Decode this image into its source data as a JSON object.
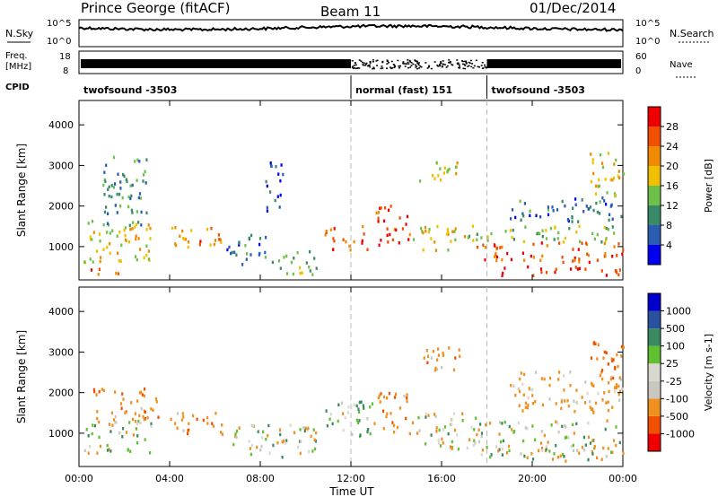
{
  "header": {
    "station": "Prince George (fitACF)",
    "beam": "Beam 11",
    "date": "01/Dec/2014"
  },
  "top_panels": {
    "nsky_label": "N.Sky",
    "nsky_ticks": [
      "10^5",
      "10^0"
    ],
    "nsearch_label": "N.Search",
    "nsearch_ticks": [
      "10^5",
      "10^0"
    ],
    "freq_label": "Freq.",
    "freq_unit": "[MHz]",
    "freq_ticks": [
      "18",
      "8"
    ],
    "nave_label": "Nave",
    "nave_ticks": [
      "60",
      "0"
    ],
    "cpid_label": "CPID"
  },
  "cpid_segments": [
    {
      "start_h": 0,
      "end_h": 12,
      "label": "twofsound -3503"
    },
    {
      "start_h": 12,
      "end_h": 18,
      "label": "normal (fast) 151"
    },
    {
      "start_h": 18,
      "end_h": 24,
      "label": "twofsound -3503"
    }
  ],
  "colors": {
    "power": [
      "#0000ee",
      "#2a5cb4",
      "#3a8a6a",
      "#6fc04a",
      "#f0c000",
      "#f08a00",
      "#f05000",
      "#ee0000"
    ],
    "velocity": [
      "#ee0000",
      "#f05000",
      "#f09020",
      "#c8c8c0",
      "#d8d8d0",
      "#60c030",
      "#3a8a60",
      "#2a50a0",
      "#0000cc"
    ]
  },
  "chart_data": [
    {
      "type": "heatmap",
      "title": "Power",
      "xlabel": "Time UT",
      "ylabel": "Slant Range [km]",
      "x_ticks": [
        "00:00",
        "04:00",
        "08:00",
        "12:00",
        "16:00",
        "20:00",
        "00:00"
      ],
      "xlim_hours": [
        0,
        24
      ],
      "y_ticks": [
        1000,
        2000,
        3000,
        4000
      ],
      "ylim": [
        180,
        4600
      ],
      "colorbar": {
        "label": "Power [dB]",
        "ticks": [
          "4",
          "8",
          "12",
          "16",
          "20",
          "24",
          "28"
        ],
        "range": [
          0,
          32
        ]
      },
      "echo_regions": [
        {
          "t0": 0.2,
          "t1": 3.3,
          "r0": 600,
          "r1": 1700,
          "v": 18
        },
        {
          "t0": 0.3,
          "t1": 2.2,
          "r0": 300,
          "r1": 450,
          "v": 28
        },
        {
          "t0": 1.0,
          "t1": 3.0,
          "r0": 1500,
          "r1": 3200,
          "v": 10
        },
        {
          "t0": 4.0,
          "t1": 5.0,
          "r0": 800,
          "r1": 1500,
          "v": 20
        },
        {
          "t0": 5.2,
          "t1": 6.3,
          "r0": 900,
          "r1": 1500,
          "v": 24
        },
        {
          "t0": 6.5,
          "t1": 8.3,
          "r0": 500,
          "r1": 1300,
          "v": 8
        },
        {
          "t0": 8.2,
          "t1": 9.0,
          "r0": 1800,
          "r1": 3100,
          "v": 6
        },
        {
          "t0": 8.5,
          "t1": 10.5,
          "r0": 300,
          "r1": 900,
          "v": 12
        },
        {
          "t0": 10.8,
          "t1": 12.8,
          "r0": 900,
          "r1": 1500,
          "v": 26
        },
        {
          "t0": 13.0,
          "t1": 14.5,
          "r0": 1000,
          "r1": 2000,
          "v": 28
        },
        {
          "t0": 14.5,
          "t1": 17.0,
          "r0": 900,
          "r1": 1500,
          "v": 18
        },
        {
          "t0": 15.0,
          "t1": 17.0,
          "r0": 2600,
          "r1": 3100,
          "v": 16
        },
        {
          "t0": 17.5,
          "t1": 24.0,
          "r0": 600,
          "r1": 1100,
          "v": 26
        },
        {
          "t0": 18.0,
          "t1": 24.0,
          "r0": 280,
          "r1": 500,
          "v": 30
        },
        {
          "t0": 17.0,
          "t1": 24.0,
          "r0": 1100,
          "r1": 1500,
          "v": 14
        },
        {
          "t0": 19.0,
          "t1": 24.0,
          "r0": 1600,
          "r1": 2200,
          "v": 8
        },
        {
          "t0": 22.5,
          "t1": 24.0,
          "r0": 2200,
          "r1": 3300,
          "v": 18
        }
      ]
    },
    {
      "type": "heatmap",
      "title": "Velocity",
      "xlabel": "Time UT",
      "ylabel": "Slant Range [km]",
      "x_ticks": [
        "00:00",
        "04:00",
        "08:00",
        "12:00",
        "16:00",
        "20:00",
        "00:00"
      ],
      "xlim_hours": [
        0,
        24
      ],
      "y_ticks": [
        1000,
        2000,
        3000,
        4000
      ],
      "ylim": [
        180,
        4600
      ],
      "colorbar": {
        "label": "Velocity [m s-1]",
        "ticks": [
          "1000",
          "500",
          "100",
          "25",
          "-25",
          "-100",
          "-500",
          "-1000"
        ],
        "range": [
          -1200,
          1200
        ]
      },
      "echo_regions": [
        {
          "t0": 0.2,
          "t1": 3.3,
          "r0": 500,
          "r1": 1300,
          "v": 0
        },
        {
          "t0": 0.5,
          "t1": 3.5,
          "r0": 1300,
          "r1": 2100,
          "v": -200
        },
        {
          "t0": 4.0,
          "t1": 6.3,
          "r0": 900,
          "r1": 1500,
          "v": -200
        },
        {
          "t0": 6.5,
          "t1": 10.5,
          "r0": 400,
          "r1": 1200,
          "v": 0
        },
        {
          "t0": 10.8,
          "t1": 13.0,
          "r0": 900,
          "r1": 1800,
          "v": 80
        },
        {
          "t0": 13.0,
          "t1": 14.5,
          "r0": 1000,
          "r1": 2000,
          "v": -200
        },
        {
          "t0": 14.5,
          "t1": 17.5,
          "r0": 600,
          "r1": 1500,
          "v": 0
        },
        {
          "t0": 15.0,
          "t1": 17.0,
          "r0": 2500,
          "r1": 3100,
          "v": -200
        },
        {
          "t0": 17.5,
          "t1": 24.0,
          "r0": 300,
          "r1": 1300,
          "v": 0
        },
        {
          "t0": 19.0,
          "t1": 24.0,
          "r0": 1500,
          "r1": 2500,
          "v": -150
        },
        {
          "t0": 22.5,
          "t1": 24.0,
          "r0": 2300,
          "r1": 3300,
          "v": -300
        }
      ]
    }
  ]
}
